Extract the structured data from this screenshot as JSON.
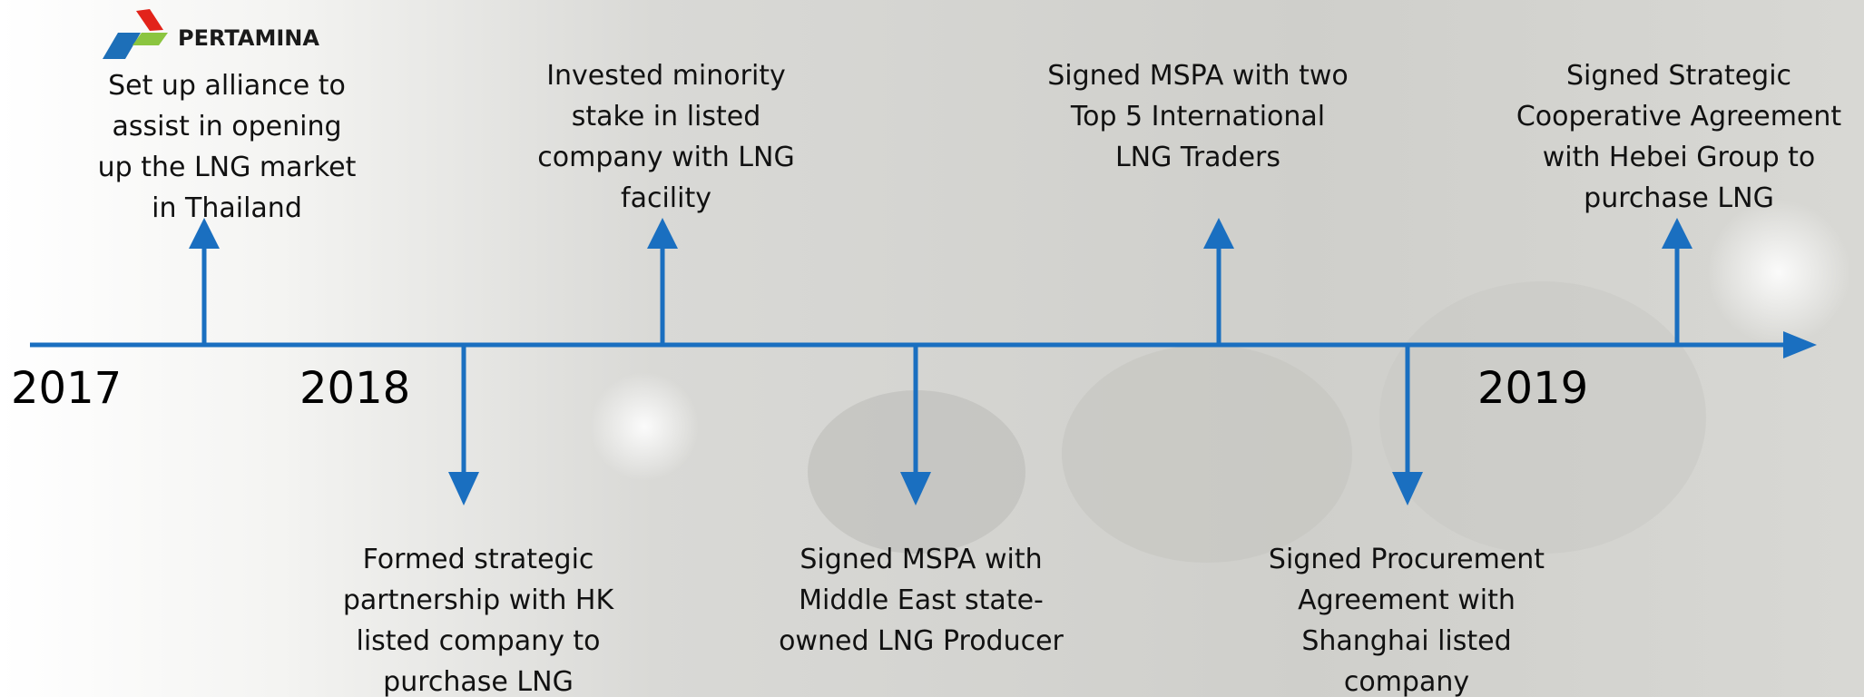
{
  "logo": "PERTAMINA",
  "years": [
    "2017",
    "2018",
    "2019"
  ],
  "events_above": [
    {
      "lines": [
        "Set up alliance to",
        "assist in opening",
        "up the LNG market",
        "in Thailand"
      ]
    },
    {
      "lines": [
        "Invested minority",
        "stake in listed",
        "company with LNG",
        "facility"
      ]
    },
    {
      "lines": [
        "Signed MSPA with two",
        "Top 5 International",
        "LNG Traders"
      ]
    },
    {
      "lines": [
        "Signed Strategic",
        "Cooperative Agreement",
        "with Hebei Group to",
        "purchase LNG"
      ]
    }
  ],
  "events_below": [
    {
      "lines": [
        "Formed strategic",
        "partnership with HK",
        "listed company to",
        "purchase LNG"
      ]
    },
    {
      "lines": [
        "Signed MSPA with",
        "Middle East state-",
        "owned LNG Producer"
      ]
    },
    {
      "lines": [
        "Signed Procurement",
        "Agreement with",
        "Shanghai listed",
        "company"
      ]
    }
  ]
}
